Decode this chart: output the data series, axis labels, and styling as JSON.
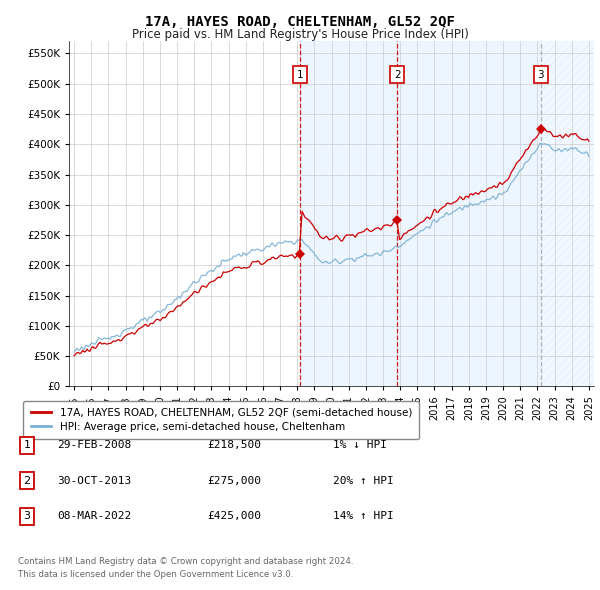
{
  "title": "17A, HAYES ROAD, CHELTENHAM, GL52 2QF",
  "subtitle": "Price paid vs. HM Land Registry's House Price Index (HPI)",
  "ylabel_vals": [
    0,
    50000,
    100000,
    150000,
    200000,
    250000,
    300000,
    350000,
    400000,
    450000,
    500000,
    550000
  ],
  "ylabel_labels": [
    "£0",
    "£50K",
    "£100K",
    "£150K",
    "£200K",
    "£250K",
    "£300K",
    "£350K",
    "£400K",
    "£450K",
    "£500K",
    "£550K"
  ],
  "ylim": [
    0,
    570000
  ],
  "xlim_start": 1994.7,
  "xlim_end": 2025.3,
  "sale_dates": [
    2008.15,
    2013.83,
    2022.19
  ],
  "sale_prices": [
    218500,
    275000,
    425000
  ],
  "sale_labels": [
    "1",
    "2",
    "3"
  ],
  "red_line_color": "#cc0000",
  "blue_line_color": "#7ab0d4",
  "shade_color": "#ddeeff",
  "grid_color": "#cccccc",
  "bg_color": "#ffffff",
  "legend_entry1": "17A, HAYES ROAD, CHELTENHAM, GL52 2QF (semi-detached house)",
  "legend_entry2": "HPI: Average price, semi-detached house, Cheltenham",
  "table_rows": [
    [
      "1",
      "29-FEB-2008",
      "£218,500",
      "1% ↓ HPI"
    ],
    [
      "2",
      "30-OCT-2013",
      "£275,000",
      "20% ↑ HPI"
    ],
    [
      "3",
      "08-MAR-2022",
      "£425,000",
      "14% ↑ HPI"
    ]
  ],
  "footnote1": "Contains HM Land Registry data © Crown copyright and database right 2024.",
  "footnote2": "This data is licensed under the Open Government Licence v3.0.",
  "x_ticks": [
    1995,
    1996,
    1997,
    1998,
    1999,
    2000,
    2001,
    2002,
    2003,
    2004,
    2005,
    2006,
    2007,
    2008,
    2009,
    2010,
    2011,
    2012,
    2013,
    2014,
    2015,
    2016,
    2017,
    2018,
    2019,
    2020,
    2021,
    2022,
    2023,
    2024,
    2025
  ]
}
